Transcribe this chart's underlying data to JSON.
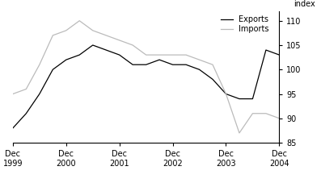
{
  "title": "",
  "ylabel": "index",
  "ylim": [
    85,
    112
  ],
  "yticks": [
    85,
    90,
    95,
    100,
    105,
    110
  ],
  "background_color": "#ffffff",
  "exports_color": "#000000",
  "imports_color": "#bbbbbb",
  "line_width": 0.9,
  "exports_x": [
    0,
    1,
    2,
    3,
    4,
    5,
    6,
    7,
    8,
    9,
    10,
    11,
    12,
    13,
    14,
    15,
    16,
    17,
    18,
    19,
    20
  ],
  "exports_y": [
    88,
    91,
    95,
    100,
    102,
    103,
    105,
    104,
    103,
    101,
    101,
    102,
    101,
    101,
    100,
    98,
    95,
    94,
    94,
    104,
    103
  ],
  "imports_x": [
    0,
    1,
    2,
    3,
    4,
    5,
    6,
    7,
    8,
    9,
    10,
    11,
    12,
    13,
    14,
    15,
    16,
    17,
    18,
    19,
    20
  ],
  "imports_y": [
    95,
    96,
    101,
    107,
    108,
    110,
    108,
    107,
    106,
    105,
    103,
    103,
    103,
    103,
    102,
    101,
    95,
    87,
    91,
    91,
    90
  ],
  "xtick_positions": [
    0,
    4,
    8,
    12,
    16,
    20
  ],
  "xtick_labels": [
    "Dec\n1999",
    "Dec\n2000",
    "Dec\n2001",
    "Dec\n2002",
    "Dec\n2003",
    "Dec\n2004"
  ],
  "legend_labels": [
    "Exports",
    "Imports"
  ]
}
